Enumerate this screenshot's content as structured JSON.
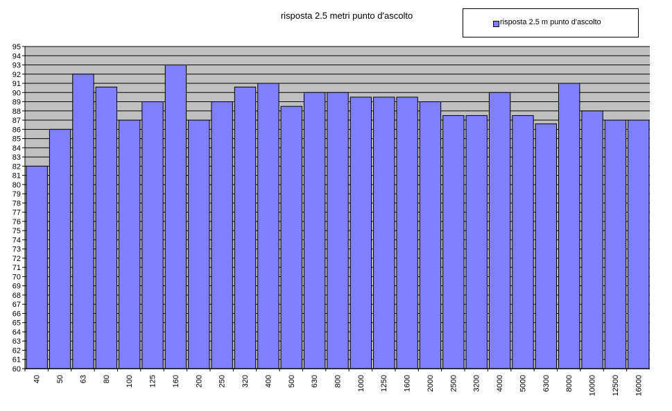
{
  "chart_data": {
    "type": "bar",
    "title": "risposta  2.5 metri punto d'ascolto",
    "xlabel": "",
    "ylabel": "",
    "ylim": [
      60,
      95
    ],
    "yticks": [
      60,
      61,
      62,
      63,
      64,
      65,
      66,
      67,
      68,
      69,
      70,
      71,
      72,
      73,
      74,
      75,
      76,
      77,
      78,
      79,
      80,
      81,
      82,
      83,
      84,
      85,
      86,
      87,
      88,
      89,
      90,
      91,
      92,
      93,
      94,
      95
    ],
    "grid": true,
    "legend_position": "top-right",
    "categories": [
      "40",
      "50",
      "63",
      "80",
      "100",
      "125",
      "160",
      "200",
      "250",
      "320",
      "400",
      "500",
      "630",
      "800",
      "1000",
      "1250",
      "1600",
      "2000",
      "2500",
      "3200",
      "4000",
      "5000",
      "6300",
      "8000",
      "10000",
      "12500",
      "16000"
    ],
    "series": [
      {
        "name": "risposta 2.5  m punto  d'ascolto",
        "color": "#8080ff",
        "values": [
          82,
          86,
          92,
          90.6,
          87,
          89,
          93,
          87,
          89,
          90.6,
          91,
          88.5,
          90,
          90,
          89.5,
          89.5,
          89.5,
          89,
          87.5,
          87.5,
          90,
          87.5,
          86.6,
          91,
          88,
          87,
          87
        ]
      }
    ],
    "plot_background": "#c0c0c0",
    "bar_color": "#8080ff"
  }
}
